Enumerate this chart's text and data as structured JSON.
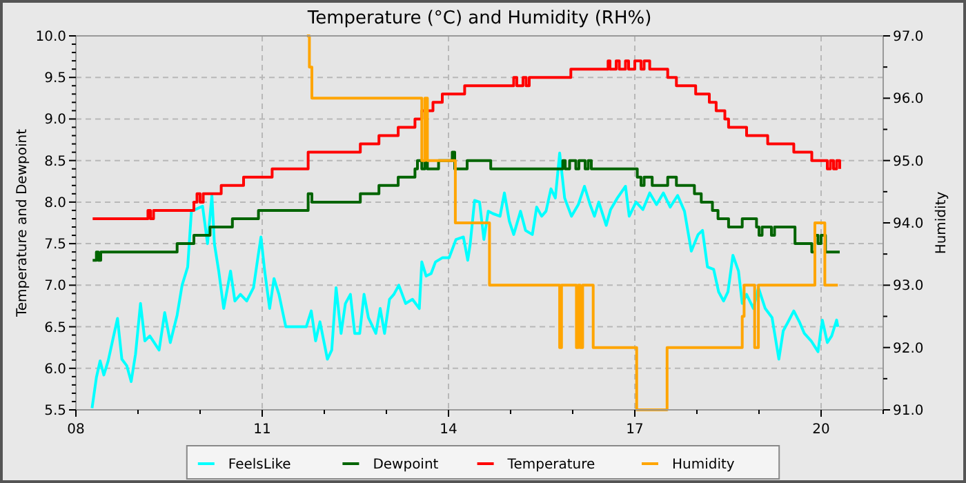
{
  "chart_data": {
    "type": "step",
    "title": "Temperature (°C) and Humidity (RH%)",
    "ylabel": "Temperature and Dewpoint",
    "y2label": "Humidity",
    "xlim": [
      8,
      21
    ],
    "ylim": [
      5.5,
      10
    ],
    "y2lim": [
      91,
      97
    ],
    "xticks": [
      {
        "value": 8,
        "label": "08"
      },
      {
        "value": 9,
        "label": null
      },
      {
        "value": 10,
        "label": null
      },
      {
        "value": 11,
        "label": "11"
      },
      {
        "value": 12,
        "label": null
      },
      {
        "value": 13,
        "label": null
      },
      {
        "value": 14,
        "label": "14"
      },
      {
        "value": 15,
        "label": null
      },
      {
        "value": 16,
        "label": null
      },
      {
        "value": 17,
        "label": "17"
      },
      {
        "value": 18,
        "label": null
      },
      {
        "value": 19,
        "label": null
      },
      {
        "value": 20,
        "label": "20"
      },
      {
        "value": 21,
        "label": null
      }
    ],
    "yticks": [
      5.5,
      {
        "value": 5.6,
        "label": null
      },
      {
        "value": 5.7,
        "label": null
      },
      {
        "value": 5.8,
        "label": null
      },
      {
        "value": 5.9,
        "label": null
      },
      {
        "value": 6,
        "label": "6.0"
      },
      {
        "value": 6.1,
        "label": null
      },
      {
        "value": 6.2,
        "label": null
      },
      {
        "value": 6.3,
        "label": null
      },
      {
        "value": 6.4,
        "label": null
      },
      6.5,
      {
        "value": 6.6,
        "label": null
      },
      {
        "value": 6.7,
        "label": null
      },
      {
        "value": 6.8,
        "label": null
      },
      {
        "value": 6.9,
        "label": null
      },
      {
        "value": 7,
        "label": "7.0"
      },
      {
        "value": 7.1,
        "label": null
      },
      {
        "value": 7.2,
        "label": null
      },
      {
        "value": 7.3,
        "label": null
      },
      {
        "value": 7.4,
        "label": null
      },
      7.5,
      {
        "value": 7.6,
        "label": null
      },
      {
        "value": 7.7,
        "label": null
      },
      {
        "value": 7.8,
        "label": null
      },
      {
        "value": 7.9,
        "label": null
      },
      {
        "value": 8,
        "label": "8.0"
      },
      {
        "value": 8.1,
        "label": null
      },
      {
        "value": 8.2,
        "label": null
      },
      {
        "value": 8.3,
        "label": null
      },
      {
        "value": 8.4,
        "label": null
      },
      8.5,
      {
        "value": 8.6,
        "label": null
      },
      {
        "value": 8.7,
        "label": null
      },
      {
        "value": 8.8,
        "label": null
      },
      {
        "value": 8.9,
        "label": null
      },
      {
        "value": 9,
        "label": "9.0"
      },
      {
        "value": 9.1,
        "label": null
      },
      {
        "value": 9.2,
        "label": null
      },
      {
        "value": 9.3,
        "label": null
      },
      {
        "value": 9.4,
        "label": null
      },
      9.5,
      {
        "value": 9.6,
        "label": null
      },
      {
        "value": 9.7,
        "label": null
      },
      {
        "value": 9.8,
        "label": null
      },
      {
        "value": 9.9,
        "label": null
      },
      {
        "value": 10,
        "label": "10.0"
      }
    ],
    "y2ticks": [
      {
        "value": 91,
        "label": "91.0"
      },
      {
        "value": 91.5,
        "label": null
      },
      {
        "value": 92,
        "label": "92.0"
      },
      {
        "value": 92.5,
        "label": null
      },
      {
        "value": 93,
        "label": "93.0"
      },
      {
        "value": 93.5,
        "label": null
      },
      {
        "value": 94,
        "label": "94.0"
      },
      {
        "value": 94.5,
        "label": null
      },
      {
        "value": 95,
        "label": "95.0"
      },
      {
        "value": 95.5,
        "label": null
      },
      {
        "value": 96,
        "label": "96.0"
      },
      {
        "value": 96.5,
        "label": null
      },
      {
        "value": 97,
        "label": "97.0"
      }
    ],
    "grid": true,
    "legend": "bottom",
    "series": [
      {
        "name": "FeelsLike",
        "type": "line",
        "color": "#00ffff",
        "x": [
          8.26,
          8.33,
          8.39,
          8.45,
          8.52,
          8.59,
          8.67,
          8.74,
          8.82,
          8.89,
          8.96,
          9.04,
          9.11,
          9.19,
          9.26,
          9.34,
          9.43,
          9.52,
          9.63,
          9.71,
          9.8,
          9.86,
          10.04,
          10.12,
          10.19,
          10.23,
          10.3,
          10.38,
          10.49,
          10.56,
          10.65,
          10.75,
          10.86,
          10.93,
          10.98,
          11.04,
          11.12,
          11.19,
          11.27,
          11.38,
          11.71,
          11.79,
          11.86,
          11.93,
          12.05,
          12.12,
          12.19,
          12.27,
          12.34,
          12.42,
          12.49,
          12.57,
          12.64,
          12.71,
          12.83,
          12.9,
          12.97,
          13.05,
          13.12,
          13.2,
          13.31,
          13.42,
          13.53,
          13.57,
          13.64,
          13.72,
          13.79,
          13.9,
          14.01,
          14.12,
          14.24,
          14.31,
          14.35,
          14.42,
          14.5,
          14.57,
          14.64,
          14.72,
          14.83,
          14.9,
          14.98,
          15.05,
          15.16,
          15.24,
          15.35,
          15.42,
          15.5,
          15.57,
          15.65,
          15.72,
          15.79,
          15.87,
          15.98,
          16.09,
          16.19,
          16.28,
          16.35,
          16.42,
          16.54,
          16.61,
          16.72,
          16.85,
          16.91,
          17.02,
          17.13,
          17.24,
          17.35,
          17.46,
          17.57,
          17.69,
          17.8,
          17.91,
          18.02,
          18.09,
          18.17,
          18.27,
          18.35,
          18.43,
          18.5,
          18.58,
          18.67,
          18.73,
          18.8,
          18.91,
          18.99,
          19.1,
          19.21,
          19.32,
          19.39,
          19.47,
          19.56,
          19.65,
          19.73,
          19.84,
          19.95,
          20.02,
          20.1,
          20.17,
          20.25,
          20.27
        ],
        "values": [
          5.52,
          5.89,
          6.09,
          5.92,
          6.09,
          6.33,
          6.6,
          6.11,
          6.03,
          5.84,
          6.17,
          6.78,
          6.33,
          6.39,
          6.31,
          6.22,
          6.67,
          6.31,
          6.64,
          7.0,
          7.22,
          7.89,
          7.95,
          7.5,
          8.08,
          7.5,
          7.17,
          6.72,
          7.17,
          6.81,
          6.89,
          6.81,
          6.97,
          7.33,
          7.58,
          7.17,
          6.72,
          7.08,
          6.89,
          6.5,
          6.5,
          6.69,
          6.33,
          6.56,
          6.11,
          6.22,
          6.97,
          6.42,
          6.78,
          6.89,
          6.42,
          6.42,
          6.89,
          6.61,
          6.42,
          6.72,
          6.42,
          6.83,
          6.89,
          7.0,
          6.78,
          6.83,
          6.72,
          7.28,
          7.11,
          7.14,
          7.28,
          7.33,
          7.33,
          7.55,
          7.58,
          7.3,
          7.5,
          8.02,
          8.0,
          7.55,
          7.89,
          7.86,
          7.83,
          8.11,
          7.77,
          7.61,
          7.89,
          7.66,
          7.61,
          7.94,
          7.83,
          7.89,
          8.16,
          8.05,
          8.59,
          8.05,
          7.83,
          7.97,
          8.19,
          7.97,
          7.83,
          8.0,
          7.72,
          7.91,
          8.05,
          8.19,
          7.83,
          8.0,
          7.91,
          8.11,
          7.97,
          8.11,
          7.94,
          8.08,
          7.89,
          7.41,
          7.61,
          7.66,
          7.22,
          7.19,
          6.92,
          6.81,
          6.92,
          7.36,
          7.17,
          6.78,
          6.89,
          6.72,
          6.97,
          6.72,
          6.61,
          6.11,
          6.45,
          6.56,
          6.69,
          6.56,
          6.42,
          6.33,
          6.2,
          6.58,
          6.31,
          6.39,
          6.58,
          6.5
        ]
      },
      {
        "name": "Dewpoint",
        "color": "#006400",
        "x": [
          8.27,
          8.33,
          8.36,
          8.4,
          8.45,
          9.63,
          9.9,
          10.16,
          10.52,
          10.94,
          11.74,
          11.8,
          12.58,
          12.88,
          13.19,
          13.46,
          13.5,
          13.57,
          13.62,
          13.66,
          13.84,
          14.06,
          14.1,
          14.3,
          14.68,
          15.84,
          15.88,
          15.95,
          16.05,
          16.1,
          16.2,
          16.25,
          16.3,
          16.42,
          17.04,
          17.1,
          17.15,
          17.28,
          17.53,
          17.67,
          17.96,
          18.07,
          18.25,
          18.34,
          18.51,
          18.73,
          18.96,
          19.0,
          19.05,
          19.2,
          19.25,
          19.3,
          19.58,
          19.85,
          19.9,
          19.95,
          20.0,
          20.07,
          20.3
        ],
        "values": [
          7.3,
          7.4,
          7.3,
          7.4,
          7.4,
          7.5,
          7.6,
          7.7,
          7.8,
          7.9,
          8.1,
          8.0,
          8.1,
          8.2,
          8.3,
          8.4,
          8.5,
          8.4,
          8.5,
          8.4,
          8.5,
          8.6,
          8.4,
          8.5,
          8.4,
          8.5,
          8.4,
          8.5,
          8.4,
          8.5,
          8.4,
          8.5,
          8.4,
          8.4,
          8.3,
          8.2,
          8.3,
          8.2,
          8.3,
          8.2,
          8.1,
          8.0,
          7.9,
          7.8,
          7.7,
          7.8,
          7.7,
          7.6,
          7.7,
          7.6,
          7.7,
          7.7,
          7.5,
          7.4,
          7.6,
          7.5,
          7.6,
          7.4,
          7.4
        ]
      },
      {
        "name": "Temperature",
        "color": "#ff0000",
        "x": [
          8.27,
          9.16,
          9.2,
          9.25,
          9.9,
          9.95,
          10.0,
          10.05,
          10.34,
          10.7,
          11.16,
          11.74,
          12.58,
          12.88,
          13.19,
          13.46,
          13.57,
          13.75,
          13.9,
          14.26,
          15.05,
          15.1,
          15.2,
          15.25,
          15.3,
          15.97,
          16.57,
          16.6,
          16.7,
          16.75,
          16.85,
          16.9,
          17.0,
          17.1,
          17.15,
          17.24,
          17.53,
          17.67,
          17.98,
          18.2,
          18.31,
          18.45,
          18.51,
          18.8,
          19.14,
          19.56,
          19.85,
          20.1,
          20.15,
          20.2,
          20.25,
          20.3
        ],
        "values": [
          7.8,
          7.9,
          7.8,
          7.9,
          8.0,
          8.1,
          8.0,
          8.1,
          8.2,
          8.3,
          8.4,
          8.6,
          8.7,
          8.8,
          8.9,
          9.0,
          9.1,
          9.2,
          9.3,
          9.4,
          9.5,
          9.4,
          9.5,
          9.4,
          9.5,
          9.6,
          9.7,
          9.6,
          9.7,
          9.6,
          9.7,
          9.6,
          9.7,
          9.6,
          9.7,
          9.6,
          9.5,
          9.4,
          9.3,
          9.2,
          9.1,
          9.0,
          8.9,
          8.8,
          8.7,
          8.6,
          8.5,
          8.4,
          8.5,
          8.4,
          8.5,
          8.4
        ]
      },
      {
        "name": "Humidity",
        "color": "#ffa500",
        "axis": "y2",
        "x": [
          11.72,
          11.76,
          11.8,
          13.57,
          13.62,
          13.66,
          14.11,
          14.66,
          15.79,
          15.82,
          16.06,
          16.09,
          16.12,
          16.16,
          16.33,
          17.03,
          17.52,
          18.73,
          18.76,
          18.93,
          18.99,
          19.9,
          20.06,
          20.27
        ],
        "values": [
          97.0,
          96.5,
          96.0,
          95.0,
          96.0,
          95.0,
          94.0,
          93.0,
          92.0,
          93.0,
          92.0,
          93.0,
          92.0,
          93.0,
          92.0,
          91.0,
          92.0,
          92.5,
          93.0,
          92.0,
          93.0,
          94.0,
          93.0,
          93.0
        ]
      }
    ]
  }
}
